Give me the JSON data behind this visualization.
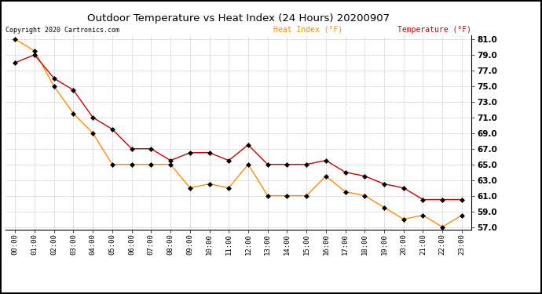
{
  "title": "Outdoor Temperature vs Heat Index (24 Hours) 20200907",
  "copyright": "Copyright 2020 Cartronics.com",
  "legend_heat": "Heat Index (°F)",
  "legend_temp": "Temperature (°F)",
  "x_labels": [
    "00:00",
    "01:00",
    "02:00",
    "03:00",
    "04:00",
    "05:00",
    "06:00",
    "07:00",
    "08:00",
    "09:00",
    "10:00",
    "11:00",
    "12:00",
    "13:00",
    "14:00",
    "15:00",
    "16:00",
    "17:00",
    "18:00",
    "19:00",
    "20:00",
    "21:00",
    "22:00",
    "23:00"
  ],
  "temperature": [
    78.0,
    79.0,
    76.0,
    74.5,
    71.0,
    69.5,
    67.0,
    67.0,
    65.5,
    66.5,
    66.5,
    65.5,
    67.5,
    65.0,
    65.0,
    65.0,
    65.5,
    64.0,
    63.5,
    62.5,
    62.0,
    60.5,
    60.5,
    60.5
  ],
  "heat_index": [
    81.0,
    79.5,
    75.0,
    71.5,
    69.0,
    65.0,
    65.0,
    65.0,
    65.0,
    62.0,
    62.5,
    62.0,
    65.0,
    61.0,
    61.0,
    61.0,
    63.5,
    61.5,
    61.0,
    59.5,
    58.0,
    58.5,
    57.0,
    58.5
  ],
  "ylim_min": 57.0,
  "ylim_max": 81.0,
  "y_ticks": [
    57.0,
    59.0,
    61.0,
    63.0,
    65.0,
    67.0,
    69.0,
    71.0,
    73.0,
    75.0,
    77.0,
    79.0,
    81.0
  ],
  "temp_color": "#cc0000",
  "heat_color": "#ff8c00",
  "marker_color": "#000000",
  "bg_color": "#ffffff",
  "grid_color": "#c8c8c8",
  "title_color": "#000000",
  "copyright_color": "#000000",
  "legend_heat_color": "#ff8c00",
  "legend_temp_color": "#cc0000",
  "border_color": "#000000"
}
